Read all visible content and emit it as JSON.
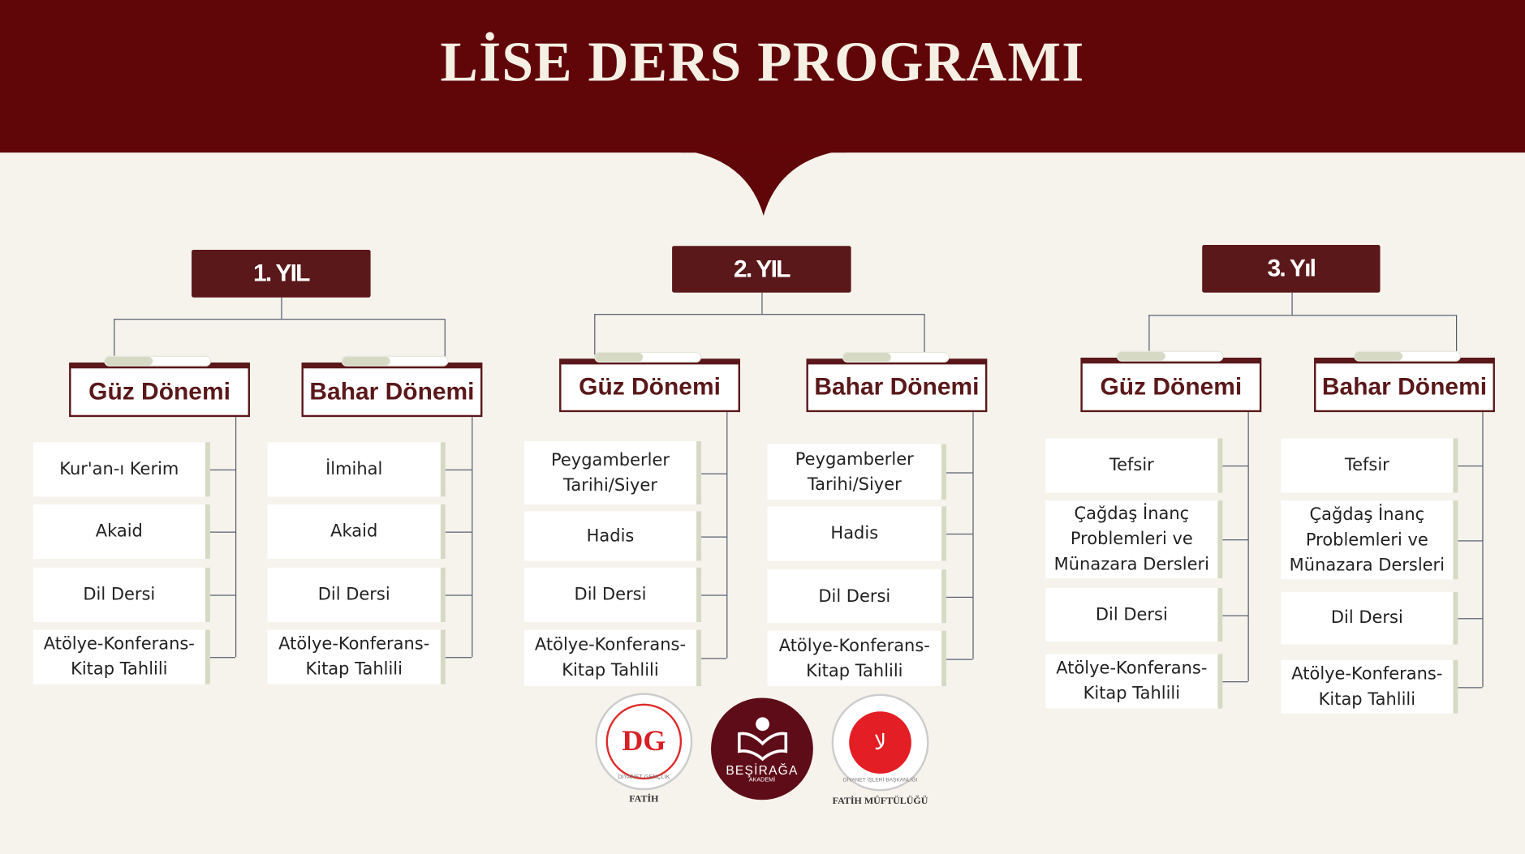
{
  "title": "LİSE DERS PROGRAMI",
  "years": [
    {
      "label": "1. YIL",
      "terms": [
        {
          "label": "Güz Dönemi",
          "items": [
            "Kur'an-ı Kerim",
            "Akaid",
            "Dil Dersi",
            "Atölye-Konferans-Kitap Tahlili"
          ]
        },
        {
          "label": "Bahar Dönemi",
          "items": [
            "İlmihal",
            "Akaid",
            "Dil Dersi",
            "Atölye-Konferans-Kitap Tahlili"
          ]
        }
      ]
    },
    {
      "label": "2. YIL",
      "terms": [
        {
          "label": "Güz Dönemi",
          "items": [
            "Peygamberler Tarihi/Siyer",
            "Hadis",
            "Dil Dersi",
            "Atölye-Konferans-Kitap Tahlili"
          ]
        },
        {
          "label": "Bahar Dönemi",
          "items": [
            "Peygamberler Tarihi/Siyer",
            "Hadis",
            "Dil Dersi",
            "Atölye-Konferans-Kitap Tahlili"
          ]
        }
      ]
    },
    {
      "label": "3. Yıl",
      "terms": [
        {
          "label": "Güz Dönemi",
          "items": [
            "Tefsir",
            "Çağdaş İnanç Problemleri ve Münazara Dersleri",
            "Dil Dersi",
            "Atölye-Konferans-Kitap Tahlili"
          ]
        },
        {
          "label": "Bahar Dönemi",
          "items": [
            "Tefsir",
            "Çağdaş İnanç Problemleri ve Münazara Dersleri",
            "Dil Dersi",
            "Atölye-Konferans-Kitap Tahlili"
          ]
        }
      ]
    }
  ],
  "logos": {
    "dg": {
      "text": "DG",
      "ring": "DİYANET GENÇLİK",
      "caption": "FATİH"
    },
    "besiraga": {
      "name": "BEŞİRAĞA",
      "sub": "AKADEMİ"
    },
    "muftu": {
      "ring": "DİYANET İŞLERİ BAŞKANLIĞI",
      "caption": "FATİH MÜFTÜLÜĞÜ"
    }
  },
  "colors": {
    "header": "#600508",
    "accent": "#5a181a",
    "background": "#f6f3ec",
    "tab": "#d6dac4"
  }
}
